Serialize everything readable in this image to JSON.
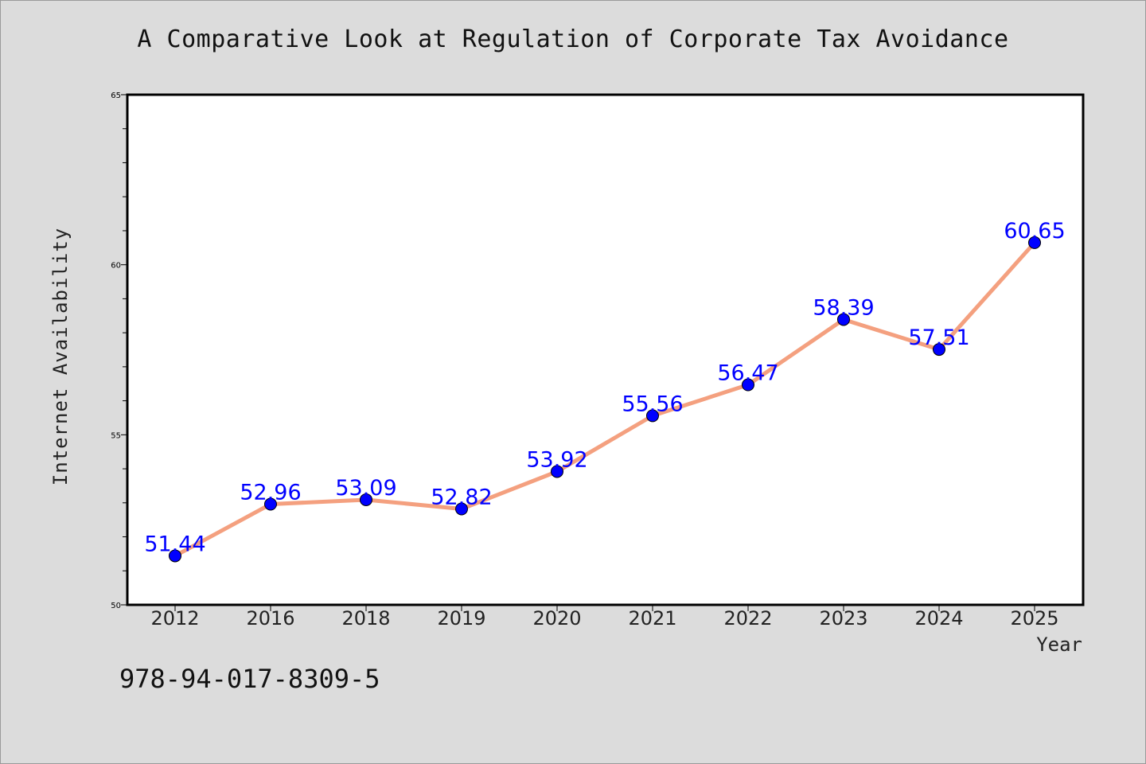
{
  "chart_data": {
    "type": "line",
    "title": "A Comparative Look at Regulation of Corporate Tax Avoidance",
    "xlabel": "Year",
    "ylabel": "Internet Availability",
    "categories": [
      "2012",
      "2016",
      "2018",
      "2019",
      "2020",
      "2021",
      "2022",
      "2023",
      "2024",
      "2025"
    ],
    "values": [
      51.44,
      52.96,
      53.09,
      52.82,
      53.92,
      55.56,
      56.47,
      58.39,
      57.51,
      60.65
    ],
    "data_labels": [
      "51.44",
      "52.96",
      "53.09",
      "52.82",
      "53.92",
      "55.56",
      "56.47",
      "58.39",
      "57.51",
      "60.65"
    ],
    "ylim": [
      50,
      65
    ],
    "yticks": [
      "50",
      "55",
      "60",
      "65"
    ],
    "grid": false,
    "line_color": "#f4a07f",
    "marker_color": "#0000ff",
    "label_color": "#0000ff"
  },
  "footer_text": "978-94-017-8309-5"
}
